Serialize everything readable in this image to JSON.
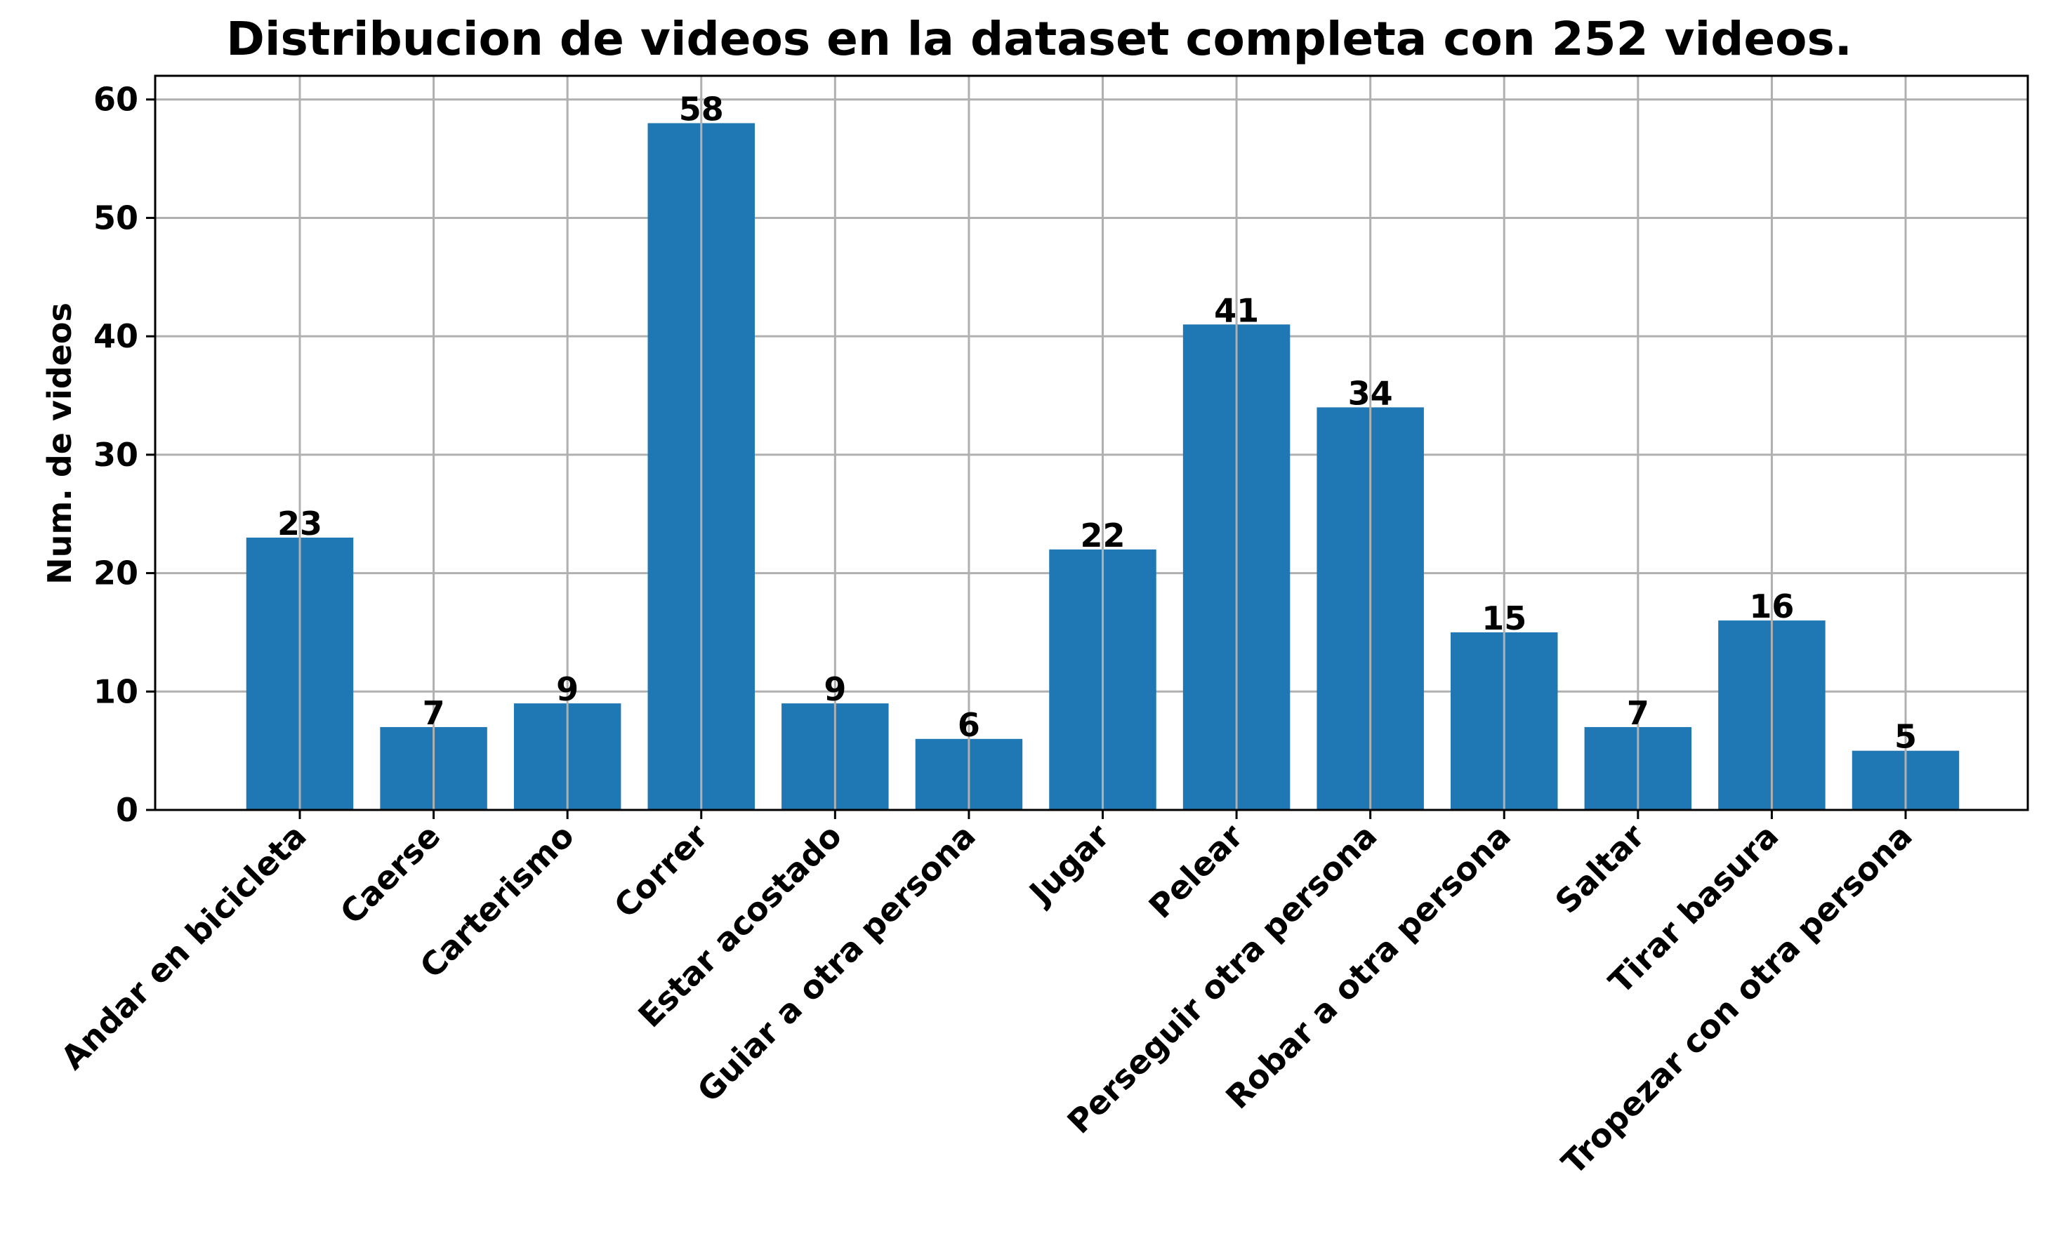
{
  "chart_data": {
    "type": "bar",
    "title": "Distribucion de videos en la dataset completa con 252 videos.",
    "xlabel": "",
    "ylabel": "Num. de videos",
    "categories": [
      "Andar en bicicleta",
      "Caerse",
      "Carterismo",
      "Correr",
      "Estar acostado",
      "Guiar a otra persona",
      "Jugar",
      "Pelear",
      "Perseguir otra persona",
      "Robar a otra persona",
      "Saltar",
      "Tirar basura",
      "Tropezar con otra persona"
    ],
    "values": [
      23,
      7,
      9,
      58,
      9,
      6,
      22,
      41,
      34,
      15,
      7,
      16,
      5
    ],
    "ylim": [
      0,
      62
    ],
    "yticks": [
      0,
      10,
      20,
      30,
      40,
      50,
      60
    ],
    "grid": true,
    "bar_color": "#1f77b4",
    "data_labels": true
  }
}
